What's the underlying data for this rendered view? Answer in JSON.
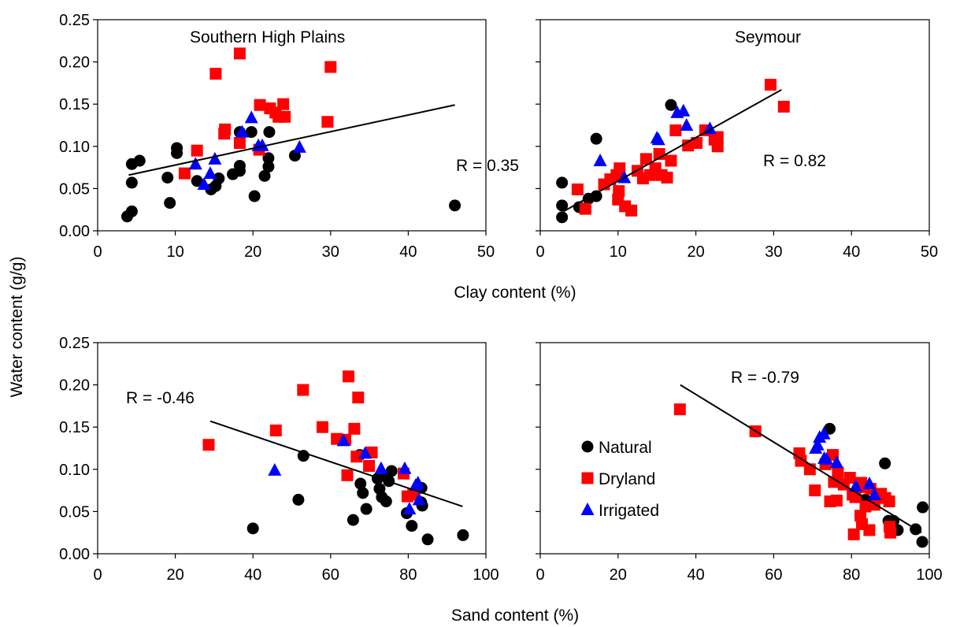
{
  "figure": {
    "ylabel": "Water content (g/g)",
    "xlabel_top": "Clay content (%)",
    "xlabel_bottom": "Sand content (%)"
  },
  "colors": {
    "natural": "#000000",
    "dryland": "#ff0000",
    "irrigated": "#0000ff",
    "fit": "#000000"
  },
  "legend": [
    {
      "key": "natural",
      "label": "Natural",
      "marker": "circle"
    },
    {
      "key": "dryland",
      "label": "Dryland",
      "marker": "square"
    },
    {
      "key": "irrigated",
      "label": "Irrigated",
      "marker": "triangle"
    }
  ],
  "chart_data": [
    {
      "type": "scatter",
      "title": "Southern High Plains",
      "xlabel": "Clay content (%)",
      "ylabel": "Water content (g/g)",
      "xlim": [
        0,
        50
      ],
      "ylim": [
        0,
        0.25
      ],
      "xticks": [
        "0",
        "10",
        "20",
        "30",
        "40",
        "50"
      ],
      "yticks": [
        "0.00",
        "0.05",
        "0.10",
        "0.15",
        "0.20",
        "0.25"
      ],
      "r_label": "R = 0.35",
      "fit": {
        "x": [
          4,
          46
        ],
        "y": [
          0.066,
          0.149
        ]
      },
      "series": [
        {
          "name": "Natural",
          "key": "natural",
          "points": [
            [
              3.8,
              0.017
            ],
            [
              4.4,
              0.023
            ],
            [
              4.4,
              0.057
            ],
            [
              4.4,
              0.079
            ],
            [
              5.4,
              0.083
            ],
            [
              9.0,
              0.063
            ],
            [
              9.3,
              0.033
            ],
            [
              10.2,
              0.092
            ],
            [
              10.2,
              0.098
            ],
            [
              12.8,
              0.059
            ],
            [
              14.6,
              0.049
            ],
            [
              15.2,
              0.053
            ],
            [
              15.6,
              0.062
            ],
            [
              17.4,
              0.067
            ],
            [
              18.3,
              0.071
            ],
            [
              18.3,
              0.077
            ],
            [
              18.3,
              0.117
            ],
            [
              19.8,
              0.117
            ],
            [
              20.2,
              0.041
            ],
            [
              21.5,
              0.065
            ],
            [
              22.0,
              0.076
            ],
            [
              22.0,
              0.086
            ],
            [
              22.1,
              0.117
            ],
            [
              25.4,
              0.089
            ],
            [
              46.0,
              0.03
            ]
          ]
        },
        {
          "name": "Dryland",
          "key": "dryland",
          "points": [
            [
              11.2,
              0.068
            ],
            [
              12.8,
              0.095
            ],
            [
              15.2,
              0.186
            ],
            [
              16.3,
              0.115
            ],
            [
              16.4,
              0.12
            ],
            [
              18.3,
              0.104
            ],
            [
              18.3,
              0.21
            ],
            [
              20.8,
              0.096
            ],
            [
              20.9,
              0.149
            ],
            [
              22.2,
              0.145
            ],
            [
              22.9,
              0.14
            ],
            [
              23.3,
              0.135
            ],
            [
              23.9,
              0.15
            ],
            [
              24.1,
              0.135
            ],
            [
              29.6,
              0.129
            ],
            [
              30.0,
              0.194
            ]
          ]
        },
        {
          "name": "Irrigated",
          "key": "irrigated",
          "points": [
            [
              12.6,
              0.079
            ],
            [
              13.7,
              0.055
            ],
            [
              14.5,
              0.068
            ],
            [
              15.1,
              0.085
            ],
            [
              18.6,
              0.117
            ],
            [
              19.8,
              0.134
            ],
            [
              20.7,
              0.101
            ],
            [
              21.2,
              0.101
            ],
            [
              26.0,
              0.099
            ]
          ]
        }
      ]
    },
    {
      "type": "scatter",
      "title": "Seymour",
      "xlabel": "Clay content (%)",
      "ylabel": "Water content (g/g)",
      "xlim": [
        0,
        50
      ],
      "ylim": [
        0,
        0.25
      ],
      "xticks": [
        "0",
        "10",
        "20",
        "30",
        "40",
        "50"
      ],
      "yticks": [],
      "r_label": "R = 0.82",
      "fit": {
        "x": [
          3,
          31
        ],
        "y": [
          0.023,
          0.167
        ]
      },
      "series": [
        {
          "name": "Natural",
          "key": "natural",
          "points": [
            [
              2.8,
              0.016
            ],
            [
              2.8,
              0.03
            ],
            [
              2.8,
              0.057
            ],
            [
              5.0,
              0.028
            ],
            [
              6.2,
              0.038
            ],
            [
              7.2,
              0.041
            ],
            [
              7.2,
              0.109
            ],
            [
              16.8,
              0.149
            ]
          ]
        },
        {
          "name": "Dryland",
          "key": "dryland",
          "points": [
            [
              4.8,
              0.049
            ],
            [
              5.8,
              0.026
            ],
            [
              8.2,
              0.055
            ],
            [
              9.0,
              0.061
            ],
            [
              9.8,
              0.066
            ],
            [
              10.0,
              0.037
            ],
            [
              10.1,
              0.047
            ],
            [
              10.2,
              0.074
            ],
            [
              10.9,
              0.029
            ],
            [
              11.7,
              0.024
            ],
            [
              12.5,
              0.071
            ],
            [
              13.2,
              0.062
            ],
            [
              13.6,
              0.085
            ],
            [
              14.1,
              0.066
            ],
            [
              14.8,
              0.074
            ],
            [
              15.3,
              0.091
            ],
            [
              15.6,
              0.066
            ],
            [
              16.3,
              0.063
            ],
            [
              16.8,
              0.083
            ],
            [
              17.4,
              0.119
            ],
            [
              19.0,
              0.101
            ],
            [
              20.1,
              0.104
            ],
            [
              21.2,
              0.119
            ],
            [
              22.4,
              0.108
            ],
            [
              22.8,
              0.1
            ],
            [
              22.8,
              0.111
            ],
            [
              29.6,
              0.173
            ],
            [
              31.3,
              0.147
            ]
          ]
        },
        {
          "name": "Irrigated",
          "key": "irrigated",
          "points": [
            [
              7.7,
              0.083
            ],
            [
              10.8,
              0.063
            ],
            [
              15.0,
              0.11
            ],
            [
              15.2,
              0.108
            ],
            [
              17.6,
              0.14
            ],
            [
              18.4,
              0.142
            ],
            [
              18.8,
              0.125
            ],
            [
              21.8,
              0.121
            ]
          ]
        }
      ]
    },
    {
      "type": "scatter",
      "title": "",
      "xlabel": "Sand content (%)",
      "ylabel": "Water content (g/g)",
      "xlim": [
        0,
        100
      ],
      "ylim": [
        0,
        0.25
      ],
      "xticks": [
        "0",
        "20",
        "40",
        "60",
        "80",
        "100"
      ],
      "yticks": [
        "0.00",
        "0.05",
        "0.10",
        "0.15",
        "0.20",
        "0.25"
      ],
      "r_label": "R = -0.46",
      "fit": {
        "x": [
          29,
          94
        ],
        "y": [
          0.157,
          0.056
        ]
      },
      "series": [
        {
          "name": "Natural",
          "key": "natural",
          "points": [
            [
              40.0,
              0.03
            ],
            [
              51.7,
              0.064
            ],
            [
              53.0,
              0.116
            ],
            [
              65.8,
              0.04
            ],
            [
              67.5,
              0.117
            ],
            [
              67.7,
              0.083
            ],
            [
              68.3,
              0.072
            ],
            [
              69.2,
              0.053
            ],
            [
              72.1,
              0.089
            ],
            [
              72.6,
              0.077
            ],
            [
              73.2,
              0.067
            ],
            [
              74.1,
              0.092
            ],
            [
              74.3,
              0.062
            ],
            [
              75.0,
              0.086
            ],
            [
              75.7,
              0.098
            ],
            [
              79.6,
              0.048
            ],
            [
              80.9,
              0.033
            ],
            [
              83.3,
              0.061
            ],
            [
              83.4,
              0.078
            ],
            [
              83.6,
              0.057
            ],
            [
              85.0,
              0.017
            ],
            [
              94.1,
              0.022
            ]
          ]
        },
        {
          "name": "Dryland",
          "key": "dryland",
          "points": [
            [
              28.6,
              0.129
            ],
            [
              45.9,
              0.146
            ],
            [
              52.9,
              0.194
            ],
            [
              57.9,
              0.15
            ],
            [
              61.6,
              0.136
            ],
            [
              63.8,
              0.135
            ],
            [
              64.3,
              0.093
            ],
            [
              64.6,
              0.21
            ],
            [
              66.1,
              0.148
            ],
            [
              66.7,
              0.115
            ],
            [
              67.1,
              0.185
            ],
            [
              69.9,
              0.104
            ],
            [
              70.6,
              0.12
            ],
            [
              78.8,
              0.095
            ],
            [
              79.8,
              0.068
            ],
            [
              81.3,
              0.07
            ]
          ]
        },
        {
          "name": "Irrigated",
          "key": "irrigated",
          "points": [
            [
              45.6,
              0.099
            ],
            [
              63.3,
              0.134
            ],
            [
              68.9,
              0.119
            ],
            [
              73.0,
              0.101
            ],
            [
              79.1,
              0.101
            ],
            [
              80.3,
              0.053
            ],
            [
              81.9,
              0.081
            ],
            [
              82.5,
              0.084
            ],
            [
              82.8,
              0.064
            ]
          ]
        }
      ]
    },
    {
      "type": "scatter",
      "title": "",
      "xlabel": "Sand content (%)",
      "ylabel": "Water content (g/g)",
      "xlim": [
        0,
        100
      ],
      "ylim": [
        0,
        0.25
      ],
      "xticks": [
        "0",
        "20",
        "40",
        "60",
        "80",
        "100"
      ],
      "yticks": [],
      "r_label": "R = -0.79",
      "fit": {
        "x": [
          36,
          98
        ],
        "y": [
          0.2,
          0.025
        ]
      },
      "series": [
        {
          "name": "Natural",
          "key": "natural",
          "points": [
            [
              74.4,
              0.148
            ],
            [
              83.6,
              0.064
            ],
            [
              88.6,
              0.107
            ],
            [
              89.5,
              0.039
            ],
            [
              90.8,
              0.039
            ],
            [
              91.9,
              0.028
            ],
            [
              96.5,
              0.029
            ],
            [
              98.2,
              0.014
            ],
            [
              98.3,
              0.055
            ]
          ]
        },
        {
          "name": "Dryland",
          "key": "dryland",
          "points": [
            [
              35.9,
              0.171
            ],
            [
              55.3,
              0.145
            ],
            [
              66.6,
              0.119
            ],
            [
              67.0,
              0.11
            ],
            [
              69.3,
              0.1
            ],
            [
              70.6,
              0.075
            ],
            [
              73.3,
              0.106
            ],
            [
              74.5,
              0.062
            ],
            [
              75.2,
              0.117
            ],
            [
              75.5,
              0.085
            ],
            [
              76.2,
              0.063
            ],
            [
              76.5,
              0.096
            ],
            [
              78.0,
              0.082
            ],
            [
              79.6,
              0.09
            ],
            [
              80.3,
              0.07
            ],
            [
              80.6,
              0.023
            ],
            [
              81.0,
              0.067
            ],
            [
              82.1,
              0.079
            ],
            [
              82.3,
              0.045
            ],
            [
              82.5,
              0.084
            ],
            [
              82.7,
              0.035
            ],
            [
              83.6,
              0.056
            ],
            [
              84.6,
              0.028
            ],
            [
              84.9,
              0.077
            ],
            [
              85.9,
              0.058
            ],
            [
              87.6,
              0.071
            ],
            [
              88.7,
              0.066
            ],
            [
              89.7,
              0.062
            ],
            [
              89.8,
              0.032
            ],
            [
              90.0,
              0.025
            ]
          ]
        },
        {
          "name": "Irrigated",
          "key": "irrigated",
          "points": [
            [
              70.8,
              0.125
            ],
            [
              71.3,
              0.129
            ],
            [
              71.8,
              0.138
            ],
            [
              72.9,
              0.142
            ],
            [
              73.0,
              0.113
            ],
            [
              73.6,
              0.112
            ],
            [
              76.2,
              0.108
            ],
            [
              81.1,
              0.08
            ],
            [
              84.6,
              0.083
            ],
            [
              85.9,
              0.07
            ]
          ]
        }
      ]
    }
  ]
}
